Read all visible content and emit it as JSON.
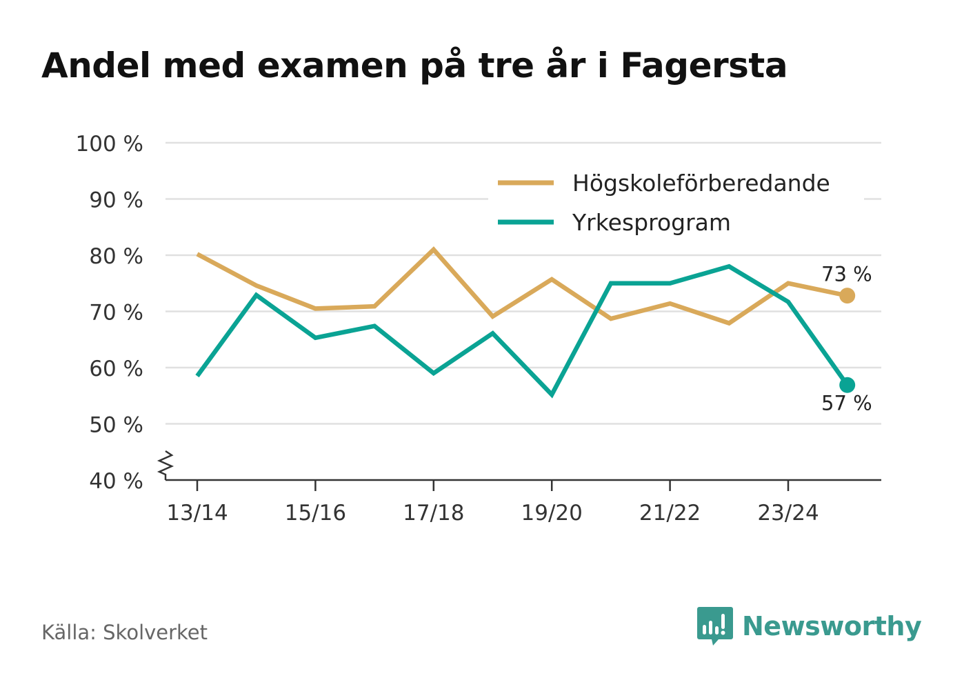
{
  "title": "Andel med examen på tre år i Fagersta",
  "source": "Källa: Skolverket",
  "brand": {
    "name": "Newsworthy",
    "color": "#3a9a8f",
    "icon": "newsworthy-logo-icon"
  },
  "chart_data": {
    "type": "line",
    "title": "Andel med examen på tre år i Fagersta",
    "xlabel": "",
    "ylabel": "",
    "ylim": [
      40,
      100
    ],
    "y_axis_break": true,
    "y_ticks": [
      40,
      50,
      60,
      70,
      80,
      90,
      100
    ],
    "y_tick_labels": [
      "40 %",
      "50 %",
      "60 %",
      "70 %",
      "80 %",
      "90 %",
      "100 %"
    ],
    "x": [
      "13/14",
      "14/15",
      "15/16",
      "16/17",
      "17/18",
      "18/19",
      "19/20",
      "20/21",
      "21/22",
      "22/23",
      "23/24",
      "24/25"
    ],
    "x_tick_labels": [
      "13/14",
      "15/16",
      "17/18",
      "19/20",
      "21/22",
      "23/24"
    ],
    "legend_position": "top-right",
    "grid": true,
    "series": [
      {
        "name": "Högskoleförberedande",
        "color": "#d9a95a",
        "values": [
          80.2,
          74.6,
          70.5,
          70.9,
          81.0,
          69.1,
          75.7,
          68.7,
          71.4,
          67.9,
          75.0,
          72.8
        ],
        "end_label": "73 %"
      },
      {
        "name": "Yrkesprogram",
        "color": "#0aa394",
        "values": [
          58.5,
          72.9,
          65.3,
          67.4,
          59.0,
          66.1,
          55.2,
          75.0,
          75.0,
          78.0,
          71.7,
          56.9
        ],
        "end_label": "57 %"
      }
    ]
  }
}
